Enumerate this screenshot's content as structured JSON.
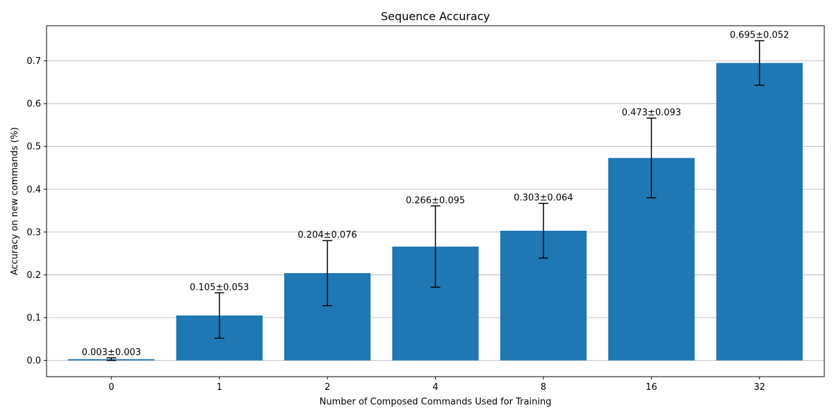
{
  "chart_data": {
    "type": "bar",
    "title": "Sequence Accuracy",
    "xlabel": "Number of Composed Commands Used for Training",
    "ylabel": "Accuracy on new commands (%)",
    "categories": [
      "0",
      "1",
      "2",
      "4",
      "8",
      "16",
      "32"
    ],
    "values": [
      0.003,
      0.105,
      0.204,
      0.266,
      0.303,
      0.473,
      0.695
    ],
    "errors": [
      0.003,
      0.053,
      0.076,
      0.095,
      0.064,
      0.093,
      0.052
    ],
    "data_labels": [
      "0.003±0.003",
      "0.105±0.053",
      "0.204±0.076",
      "0.266±0.095",
      "0.303±0.064",
      "0.473±0.093",
      "0.695±0.052"
    ],
    "yticks": [
      0.0,
      0.1,
      0.2,
      0.3,
      0.4,
      0.5,
      0.6,
      0.7
    ],
    "ytick_labels": [
      "0.0",
      "0.1",
      "0.2",
      "0.3",
      "0.4",
      "0.5",
      "0.6",
      "0.7"
    ],
    "ylim": [
      -0.038,
      0.782
    ],
    "grid": "y-major",
    "bar_color": "#1f77b4",
    "error_color": "#000000",
    "grid_color": "#b0b0b0"
  }
}
